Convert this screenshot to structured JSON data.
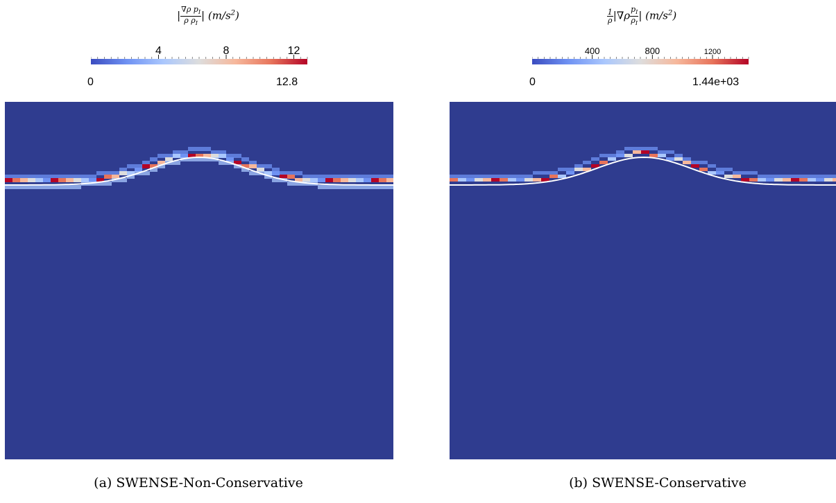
{
  "panels": [
    {
      "title_text": "|∇ρ p_I / ρ ρ_I| (m/s²)",
      "title_num": "∇ρ p",
      "title_num_sub": "I",
      "title_den": "ρ ρ",
      "title_den_sub": "I",
      "title_units": "(m/s",
      "title_units_sup": "2",
      "colorbar": {
        "min_label": "0",
        "max_label": "12.8",
        "tick_labels": [
          "4",
          "8",
          "12"
        ],
        "tick_values": [
          4,
          8,
          12
        ],
        "range": [
          0,
          12.8
        ],
        "colormap": [
          "#3b4cc0",
          "#6f92f3",
          "#aac7fd",
          "#dddddd",
          "#f6b89c",
          "#e7745b",
          "#b40426"
        ]
      },
      "caption": "(a) SWENSE-Non-Conservative"
    },
    {
      "title_text": "1/ρ |∇ρ p_I/ρ_I| (m/s²)",
      "title_pre_num": "1",
      "title_pre_den": "ρ",
      "title_mid": "|∇ρ",
      "title_num": "p",
      "title_num_sub": "I",
      "title_den": "ρ",
      "title_den_sub": "I",
      "title_units": "(m/s",
      "title_units_sup": "2",
      "colorbar": {
        "min_label": "0",
        "max_label": "1.44e+03",
        "tick_labels": [
          "400",
          "800",
          "1200"
        ],
        "tick_values": [
          400,
          800,
          1200
        ],
        "range": [
          0,
          1440
        ],
        "colormap": [
          "#3b4cc0",
          "#6f92f3",
          "#aac7fd",
          "#dddddd",
          "#f6b89c",
          "#e7745b",
          "#b40426"
        ]
      },
      "caption": "(b) SWENSE-Conservative"
    }
  ],
  "colors": {
    "background_field": "#2f3c8f",
    "interface_line": "#ffffff"
  }
}
